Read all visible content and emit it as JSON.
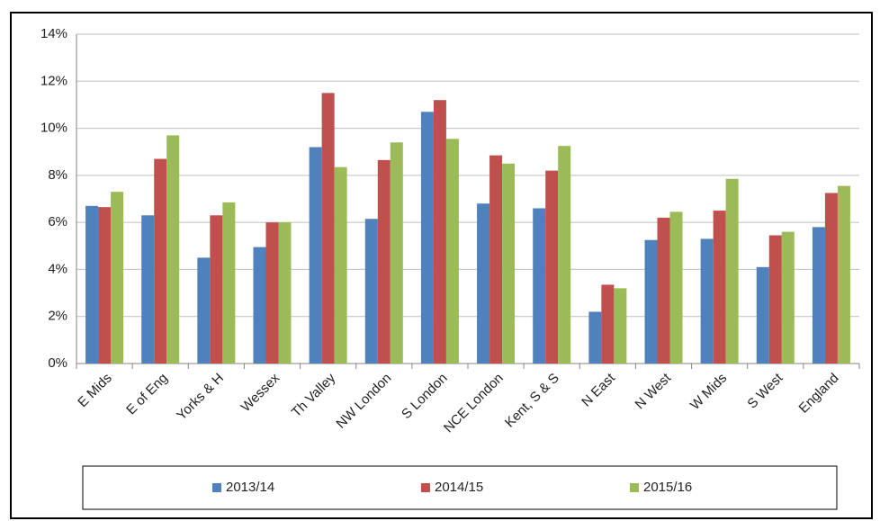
{
  "chart_data": {
    "type": "bar",
    "categories": [
      "E Mids",
      "E of Eng",
      "Yorks & H",
      "Wessex",
      "Th Valley",
      "NW London",
      "S London",
      "NCE London",
      "Kent, S & S",
      "N East",
      "N West",
      "W Mids",
      "S West",
      "England"
    ],
    "series": [
      {
        "name": "2013/14",
        "color": "#4f81bd",
        "values": [
          6.7,
          6.3,
          4.5,
          4.95,
          9.2,
          6.15,
          10.7,
          6.8,
          6.6,
          2.2,
          5.25,
          5.3,
          4.1,
          5.8
        ]
      },
      {
        "name": "2014/15",
        "color": "#c0504d",
        "values": [
          6.65,
          8.7,
          6.3,
          6.0,
          11.5,
          8.65,
          11.2,
          8.85,
          8.2,
          3.35,
          6.2,
          6.5,
          5.45,
          7.25
        ]
      },
      {
        "name": "2015/16",
        "color": "#9bbb59",
        "values": [
          7.3,
          9.7,
          6.85,
          6.0,
          8.35,
          9.4,
          9.55,
          8.5,
          9.25,
          3.2,
          6.45,
          7.85,
          5.6,
          7.55
        ]
      }
    ],
    "ylim": [
      0,
      14
    ],
    "yticks": [
      {
        "value": 0,
        "label": "0%"
      },
      {
        "value": 2,
        "label": "2%"
      },
      {
        "value": 4,
        "label": "4%"
      },
      {
        "value": 6,
        "label": "6%"
      },
      {
        "value": 8,
        "label": "8%"
      },
      {
        "value": 10,
        "label": "10%"
      },
      {
        "value": 12,
        "label": "12%"
      },
      {
        "value": 14,
        "label": "14%"
      }
    ],
    "grid": true,
    "legend": "bottom"
  }
}
